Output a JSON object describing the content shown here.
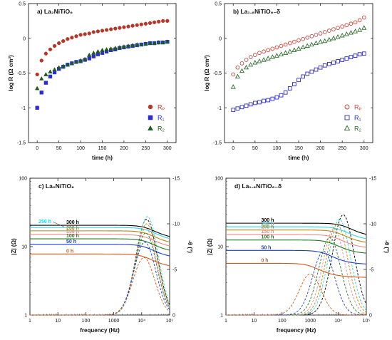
{
  "panels": [
    {
      "type": "scatter",
      "title": "a) La₂NiTiO₆",
      "xlabel": "time (h)",
      "ylabel": "log R (Ω cm²)",
      "xlim": [
        -20,
        320
      ],
      "ylim": [
        -1.5,
        0.5
      ],
      "xticks": [
        "0",
        "50",
        "100",
        "150",
        "200",
        "250",
        "300"
      ],
      "yticks": [
        "-1.5",
        "-1",
        "-0.5",
        "0",
        "0.5"
      ],
      "legend": "bottom-right",
      "series": [
        {
          "name": "Rₚ",
          "color": "#b5372a",
          "marker": "circle",
          "filled": true,
          "x": [
            0,
            10,
            20,
            30,
            40,
            50,
            60,
            70,
            80,
            90,
            100,
            110,
            120,
            130,
            140,
            150,
            160,
            170,
            180,
            190,
            200,
            210,
            220,
            230,
            240,
            250,
            260,
            270,
            280,
            290,
            300
          ],
          "y": [
            -0.52,
            -0.32,
            -0.22,
            -0.16,
            -0.11,
            -0.07,
            -0.04,
            -0.01,
            0.01,
            0.03,
            0.05,
            0.06,
            0.07,
            0.09,
            0.1,
            0.11,
            0.12,
            0.13,
            0.14,
            0.15,
            0.16,
            0.17,
            0.18,
            0.19,
            0.2,
            0.21,
            0.22,
            0.23,
            0.24,
            0.25,
            0.25
          ]
        },
        {
          "name": "R₁",
          "color": "#2b2bd8",
          "marker": "square",
          "filled": true,
          "x": [
            0,
            10,
            20,
            30,
            40,
            50,
            60,
            70,
            80,
            90,
            100,
            110,
            120,
            130,
            140,
            150,
            160,
            170,
            180,
            190,
            200,
            210,
            220,
            230,
            240,
            250,
            260,
            270,
            280,
            290,
            300
          ],
          "y": [
            -1.0,
            -0.78,
            -0.64,
            -0.55,
            -0.49,
            -0.44,
            -0.41,
            -0.38,
            -0.36,
            -0.34,
            -0.33,
            -0.31,
            -0.29,
            -0.26,
            -0.23,
            -0.21,
            -0.19,
            -0.17,
            -0.16,
            -0.14,
            -0.13,
            -0.12,
            -0.11,
            -0.1,
            -0.09,
            -0.08,
            -0.07,
            -0.07,
            -0.06,
            -0.06,
            -0.05
          ]
        },
        {
          "name": "R₂",
          "color": "#1d5a1d",
          "marker": "triangle",
          "filled": true,
          "x": [
            0,
            10,
            20,
            30,
            40,
            50,
            60,
            70,
            80,
            90,
            100,
            110,
            120,
            130,
            140,
            150,
            160,
            170,
            180,
            190,
            200,
            210,
            220,
            230,
            240,
            250,
            260,
            270,
            280,
            290,
            300
          ],
          "y": [
            -0.72,
            -0.58,
            -0.52,
            -0.48,
            -0.45,
            -0.42,
            -0.4,
            -0.38,
            -0.36,
            -0.34,
            -0.32,
            -0.3,
            -0.24,
            -0.21,
            -0.19,
            -0.17,
            -0.16,
            -0.15,
            -0.14,
            -0.13,
            -0.12,
            -0.11,
            -0.1,
            -0.09,
            -0.09,
            -0.08,
            -0.07,
            -0.07,
            -0.06,
            -0.06,
            -0.05
          ]
        }
      ],
      "legend_entries": [
        {
          "text": "Rₚ",
          "color": "#b5372a",
          "marker": "circle",
          "filled": true
        },
        {
          "text": "R₁",
          "color": "#2b2bd8",
          "marker": "square",
          "filled": true
        },
        {
          "text": "R₂",
          "color": "#1d5a1d",
          "marker": "triangle",
          "filled": true
        }
      ]
    },
    {
      "type": "scatter",
      "title": "b) La₁.₈NiTiO₆₋δ",
      "xlabel": "time (h)",
      "ylabel": "log R (Ω cm²)",
      "xlim": [
        -20,
        320
      ],
      "ylim": [
        -1.5,
        0.5
      ],
      "xticks": [
        "0",
        "50",
        "100",
        "150",
        "200",
        "250",
        "300"
      ],
      "yticks": [
        "-1.5",
        "-1",
        "-0.5",
        "0",
        "0.5"
      ],
      "legend": "bottom-right",
      "series": [
        {
          "name": "Rₚ",
          "color": "#c0453a",
          "marker": "circle",
          "filled": false,
          "x": [
            0,
            10,
            20,
            30,
            40,
            50,
            60,
            70,
            80,
            90,
            100,
            110,
            120,
            130,
            140,
            150,
            160,
            170,
            180,
            190,
            200,
            210,
            220,
            230,
            240,
            250,
            260,
            270,
            280,
            290,
            300
          ],
          "y": [
            -0.52,
            -0.42,
            -0.36,
            -0.31,
            -0.27,
            -0.24,
            -0.21,
            -0.19,
            -0.17,
            -0.15,
            -0.13,
            -0.11,
            -0.09,
            -0.07,
            -0.05,
            -0.03,
            -0.01,
            0.01,
            0.03,
            0.05,
            0.07,
            0.09,
            0.11,
            0.13,
            0.15,
            0.17,
            0.19,
            0.21,
            0.23,
            0.26,
            0.3
          ]
        },
        {
          "name": "R₁",
          "color": "#2b2bc8",
          "marker": "square",
          "filled": false,
          "x": [
            0,
            10,
            20,
            30,
            40,
            50,
            60,
            70,
            80,
            90,
            100,
            110,
            120,
            130,
            140,
            150,
            160,
            170,
            180,
            190,
            200,
            210,
            220,
            230,
            240,
            250,
            260,
            270,
            280,
            290,
            300
          ],
          "y": [
            -1.03,
            -1.01,
            -0.99,
            -0.97,
            -0.95,
            -0.93,
            -0.92,
            -0.9,
            -0.89,
            -0.87,
            -0.85,
            -0.82,
            -0.78,
            -0.72,
            -0.66,
            -0.6,
            -0.55,
            -0.51,
            -0.48,
            -0.45,
            -0.42,
            -0.39,
            -0.37,
            -0.35,
            -0.33,
            -0.31,
            -0.29,
            -0.27,
            -0.25,
            -0.23,
            -0.22
          ]
        },
        {
          "name": "R₂",
          "color": "#2a6a2a",
          "marker": "triangle",
          "filled": false,
          "x": [
            0,
            10,
            20,
            30,
            40,
            50,
            60,
            70,
            80,
            90,
            100,
            110,
            120,
            130,
            140,
            150,
            160,
            170,
            180,
            190,
            200,
            210,
            220,
            230,
            240,
            250,
            260,
            270,
            280,
            290,
            300
          ],
          "y": [
            -0.7,
            -0.55,
            -0.47,
            -0.42,
            -0.38,
            -0.35,
            -0.33,
            -0.31,
            -0.29,
            -0.27,
            -0.25,
            -0.23,
            -0.21,
            -0.19,
            -0.17,
            -0.15,
            -0.13,
            -0.11,
            -0.09,
            -0.07,
            -0.05,
            -0.04,
            -0.02,
            0.0,
            0.02,
            0.04,
            0.06,
            0.08,
            0.1,
            0.12,
            0.15
          ]
        }
      ],
      "legend_entries": [
        {
          "text": "Rₚ",
          "color": "#c0453a",
          "marker": "circle",
          "filled": false
        },
        {
          "text": "R₁",
          "color": "#2b2bc8",
          "marker": "square",
          "filled": false
        },
        {
          "text": "R₂",
          "color": "#2a6a2a",
          "marker": "triangle",
          "filled": false
        }
      ]
    },
    {
      "type": "line",
      "title": "c) La₂NiTiO₆",
      "xlabel": "frequency (Hz)",
      "ylabel": "|Z| (Ω)",
      "y2label": "-θ (°)",
      "xscale": "log",
      "yscale": "log",
      "xlim": [
        1,
        100000
      ],
      "ylim": [
        1,
        100
      ],
      "y2lim": [
        0,
        -15
      ],
      "xticks": [
        "1",
        "10",
        "100",
        "1000",
        "10⁴",
        "10⁵"
      ],
      "yticks": [
        "1",
        "10",
        "100"
      ],
      "y2ticks": [
        "0",
        "-5",
        "-10",
        "-15"
      ],
      "labels": [
        {
          "text": "300 h",
          "color": "#000000"
        },
        {
          "text": "250 h",
          "color": "#2fd4e0"
        },
        {
          "text": "200 h",
          "color": "#b8860b"
        },
        {
          "text": "150 h",
          "color": "#e98a8a"
        },
        {
          "text": "100 h",
          "color": "#1e7a1e"
        },
        {
          "text": "50 h",
          "color": "#1a3fcf"
        },
        {
          "text": "0 h",
          "color": "#d4571a"
        }
      ],
      "series": [
        {
          "name": "300 h",
          "color": "#000000",
          "z0": 20.5,
          "theta_peak": -10.5,
          "f_peak": 15000
        },
        {
          "name": "250 h",
          "color": "#2fd4e0",
          "z0": 19.0,
          "theta_peak": -10.8,
          "f_peak": 16000
        },
        {
          "name": "200 h",
          "color": "#b8860b",
          "z0": 17.0,
          "theta_peak": -10.0,
          "f_peak": 15000
        },
        {
          "name": "150 h",
          "color": "#e98a8a",
          "z0": 15.0,
          "theta_peak": -9.5,
          "f_peak": 14000
        },
        {
          "name": "100 h",
          "color": "#1e7a1e",
          "z0": 13.0,
          "theta_peak": -9.0,
          "f_peak": 14000
        },
        {
          "name": "50 h",
          "color": "#1a3fcf",
          "z0": 10.8,
          "theta_peak": -8.0,
          "f_peak": 13000
        },
        {
          "name": "0 h",
          "color": "#d4571a",
          "z0": 7.8,
          "theta_peak": -6.3,
          "f_peak": 12000
        }
      ]
    },
    {
      "type": "line",
      "title": "d) La₁.₈NiTiO₆₋δ",
      "xlabel": "frequency (Hz)",
      "ylabel": "|Z| (Ω)",
      "y2label": "-θ (°)",
      "xscale": "log",
      "yscale": "log",
      "xlim": [
        1,
        100000
      ],
      "ylim": [
        1,
        100
      ],
      "y2lim": [
        0,
        -15
      ],
      "xticks": [
        "1",
        "10",
        "100",
        "1000",
        "10⁴",
        "10⁵"
      ],
      "yticks": [
        "1",
        "10",
        "100"
      ],
      "y2ticks": [
        "0",
        "-5",
        "-10",
        "-15"
      ],
      "labels": [
        {
          "text": "300 h",
          "color": "#000000"
        },
        {
          "text": "250 h",
          "color": "#2fd4e0"
        },
        {
          "text": "200 h",
          "color": "#b8860b"
        },
        {
          "text": "150 h",
          "color": "#e98a8a"
        },
        {
          "text": "100 h",
          "color": "#1e7a1e"
        },
        {
          "text": "50 h",
          "color": "#1a3fcf"
        },
        {
          "text": "0 h",
          "color": "#d4571a"
        }
      ],
      "series": [
        {
          "name": "300 h",
          "color": "#000000",
          "z0": 22.0,
          "theta_peak": -11.0,
          "f_peak": 15000
        },
        {
          "name": "250 h",
          "color": "#2fd4e0",
          "z0": 19.5,
          "theta_peak": -10.5,
          "f_peak": 11000
        },
        {
          "name": "200 h",
          "color": "#b8860b",
          "z0": 17.5,
          "theta_peak": -10.0,
          "f_peak": 9000
        },
        {
          "name": "150 h",
          "color": "#e98a8a",
          "z0": 15.0,
          "theta_peak": -9.5,
          "f_peak": 7000
        },
        {
          "name": "100 h",
          "color": "#1e7a1e",
          "z0": 12.5,
          "theta_peak": -8.5,
          "f_peak": 5000
        },
        {
          "name": "50 h",
          "color": "#1a3fcf",
          "z0": 8.8,
          "theta_peak": -7.0,
          "f_peak": 3000
        },
        {
          "name": "0 h",
          "color": "#d4571a",
          "z0": 5.7,
          "theta_peak": -4.5,
          "f_peak": 1000
        }
      ]
    }
  ]
}
